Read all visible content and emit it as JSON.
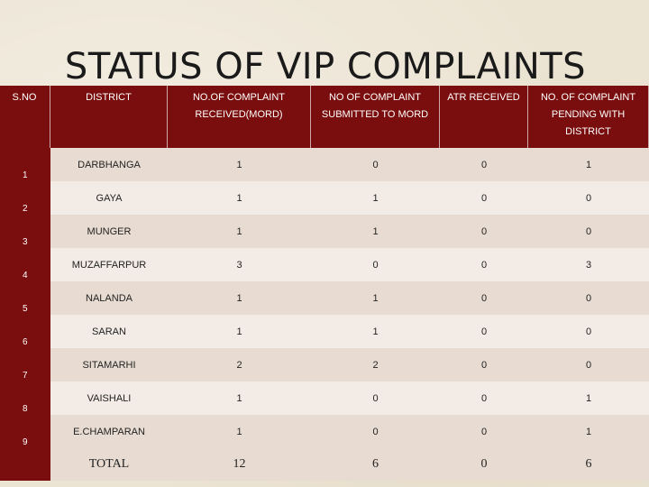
{
  "title": "STATUS OF VIP COMPLAINTS",
  "headers": {
    "sno": "S.NO",
    "district": "DISTRICT",
    "received": "NO.OF COMPLAINT RECEIVED(MORD)",
    "submitted": "NO OF COMPLAINT SUBMITTED TO MORD",
    "atr": "ATR RECEIVED",
    "pending": "NO. OF COMPLAINT PENDING WITH DISTRICT"
  },
  "rows": [
    {
      "sno": "1",
      "district": "DARBHANGA",
      "received": "1",
      "submitted": "0",
      "atr": "0",
      "pending": "1"
    },
    {
      "sno": "2",
      "district": "GAYA",
      "received": "1",
      "submitted": "1",
      "atr": "0",
      "pending": "0"
    },
    {
      "sno": "3",
      "district": "MUNGER",
      "received": "1",
      "submitted": "1",
      "atr": "0",
      "pending": "0"
    },
    {
      "sno": "4",
      "district": "MUZAFFARPUR",
      "received": "3",
      "submitted": "0",
      "atr": "0",
      "pending": "3"
    },
    {
      "sno": "5",
      "district": "NALANDA",
      "received": "1",
      "submitted": "1",
      "atr": "0",
      "pending": "0"
    },
    {
      "sno": "6",
      "district": "SARAN",
      "received": "1",
      "submitted": "1",
      "atr": "0",
      "pending": "0"
    },
    {
      "sno": "7",
      "district": "SITAMARHI",
      "received": "2",
      "submitted": "2",
      "atr": "0",
      "pending": "0"
    },
    {
      "sno": "8",
      "district": "VAISHALI",
      "received": "1",
      "submitted": "0",
      "atr": "0",
      "pending": "1"
    },
    {
      "sno": "9",
      "district": "E.CHAMPARAN",
      "received": "1",
      "submitted": "0",
      "atr": "0",
      "pending": "1"
    }
  ],
  "total": {
    "label": "TOTAL",
    "received": "12",
    "submitted": "6",
    "atr": "0",
    "pending": "6"
  },
  "colors": {
    "header_bg": "#7a0d0d",
    "row_odd": "#e8dcd2",
    "row_even": "#f3ece6",
    "page_bg": "#ece4d3"
  }
}
